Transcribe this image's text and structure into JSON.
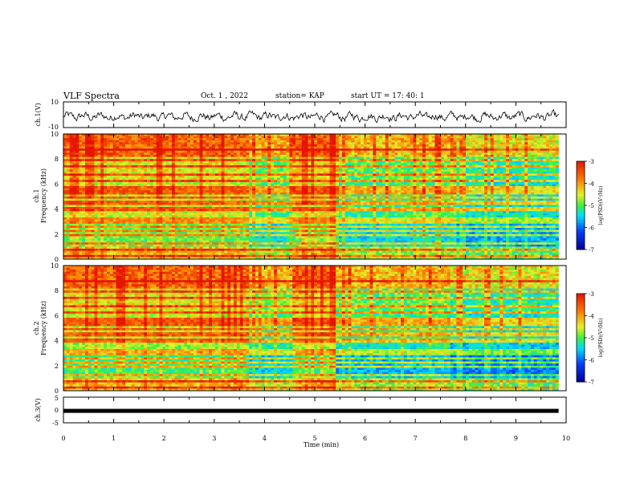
{
  "header": {
    "title": "VLF Spectra",
    "date": "Oct. 1 , 2022",
    "station": "station= KAP",
    "start": "start UT =  17: 40: 1"
  },
  "chart_data": [
    {
      "type": "line",
      "name": "ch1-waveform",
      "ylabel": "ch.1(V)",
      "ylim": [
        -10,
        10
      ],
      "yticks": [
        "10",
        "-10"
      ],
      "xlim": [
        0,
        10
      ],
      "x_end": 9.85
    },
    {
      "type": "heatmap",
      "name": "ch1-spectrogram",
      "ylabel": "ch.1\nFrequency (kHz)",
      "ylim": [
        0,
        10
      ],
      "yticks": [
        "0",
        "2",
        "4",
        "6",
        "8",
        "10"
      ],
      "xlim": [
        0,
        10
      ],
      "x_end": 9.85,
      "colorbar": {
        "label": "log(PSD)(V²/Hz)",
        "range": [
          -7,
          -3
        ],
        "ticks": [
          "-3",
          "-4",
          "-5",
          "-6",
          "-7"
        ]
      }
    },
    {
      "type": "heatmap",
      "name": "ch2-spectrogram",
      "ylabel": "ch.2\nFrequency (kHz)",
      "ylim": [
        0,
        10
      ],
      "yticks": [
        "0",
        "2",
        "4",
        "6",
        "8",
        "10"
      ],
      "xlim": [
        0,
        10
      ],
      "x_end": 9.85,
      "colorbar": {
        "label": "log(PSD)(V²/Hz)",
        "range": [
          -7,
          -3
        ],
        "ticks": [
          "-3",
          "-4",
          "-5",
          "-6",
          "-7"
        ]
      }
    },
    {
      "type": "line",
      "name": "ch3-level",
      "ylabel": "ch.3(V)",
      "ylim": [
        -5,
        5
      ],
      "yticks": [
        "5",
        "0",
        "-5"
      ],
      "xlim": [
        0,
        10
      ],
      "x_end": 9.85,
      "level": -0.2
    }
  ],
  "xaxis": {
    "label": "Time (min)",
    "ticks": [
      "0",
      "1",
      "2",
      "3",
      "4",
      "5",
      "6",
      "7",
      "8",
      "9",
      "10"
    ]
  }
}
